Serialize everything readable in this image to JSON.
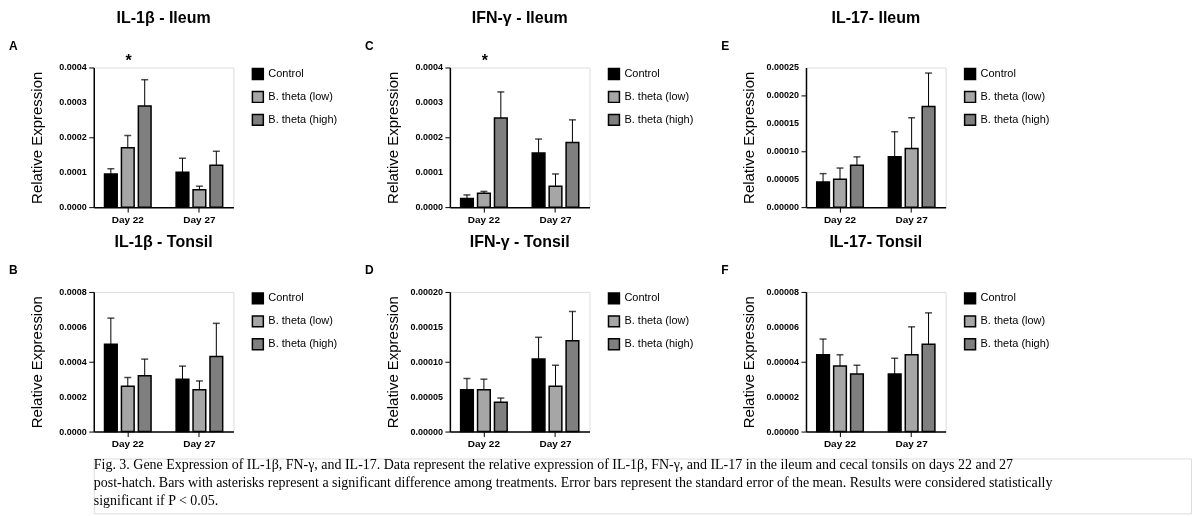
{
  "chart_data": [
    {
      "type": "bar",
      "title": "IL-1β - Ileum",
      "ylabel": "Relative Expression",
      "categories": [
        "Day 22",
        "Day 27"
      ],
      "legend": "right",
      "ylim": [
        0,
        0.0004
      ],
      "yticks": [
        {
          "value": 0,
          "label": "0.0000"
        },
        0.0001,
        0.0002,
        0.0003,
        0.0004
      ],
      "annotations": [
        "A",
        "*"
      ],
      "series": [
        {
          "name": "Control",
          "color": "#000000",
          "values": [
            9.5e-05,
            0.0001
          ],
          "errors": [
            [
              9.5e-05,
              0.00011
            ],
            [
              0.0001,
              0.00014
            ]
          ]
        },
        {
          "name": "B. theta (low)",
          "color": "#a6a6a6",
          "values": [
            0.00017,
            5e-05
          ],
          "errors": [
            [
              0.00017,
              0.000205
            ],
            [
              5e-05,
              6e-05
            ]
          ]
        },
        {
          "name": "B. theta (high)",
          "color": "#7f7f7f",
          "values": [
            0.00029,
            0.00012
          ],
          "errors": [
            [
              0.00029,
              0.000365
            ],
            [
              0.00012,
              0.00016
            ]
          ]
        }
      ]
    },
    {
      "type": "bar",
      "title": "IFN-γ - Ileum",
      "ylabel": "Relative Expression",
      "categories": [
        "Day 22",
        "Day 27"
      ],
      "legend": "right",
      "ylim": [
        0,
        0.0004
      ],
      "yticks": [
        {
          "value": 0,
          "label": "0.0000"
        },
        0.0001,
        0.0002,
        0.0003,
        0.0004
      ],
      "annotations": [
        "C",
        "*"
      ],
      "series": [
        {
          "name": "Control",
          "color": "#000000",
          "values": [
            2.5e-05,
            0.000155
          ],
          "errors": [
            [
              2.5e-05,
              3.5e-05
            ],
            [
              0.000155,
              0.000195
            ]
          ]
        },
        {
          "name": "B. theta (low)",
          "color": "#a6a6a6",
          "values": [
            4e-05,
            6e-05
          ],
          "errors": [
            [
              4e-05,
              4.5e-05
            ],
            [
              6e-05,
              9.5e-05
            ]
          ]
        },
        {
          "name": "B. theta (high)",
          "color": "#7f7f7f",
          "values": [
            0.000255,
            0.000185
          ],
          "errors": [
            [
              0.000255,
              0.00033
            ],
            [
              0.000185,
              0.00025
            ]
          ]
        }
      ]
    },
    {
      "type": "bar",
      "title": "IL-17- Ileum",
      "ylabel": "Relative Expression",
      "categories": [
        "Day 22",
        "Day 27"
      ],
      "legend": "right",
      "ylim": [
        0,
        0.00025
      ],
      "yticks": [
        {
          "value": 0,
          "label": "0.00000"
        },
        {
          "value": 5e-05,
          "label": "0.00005"
        },
        {
          "value": 0.0001,
          "label": "0.00010"
        },
        {
          "value": 0.00015,
          "label": "0.00015"
        },
        {
          "value": 0.0002,
          "label": "0.00020"
        },
        {
          "value": 0.00025,
          "label": "0.00025"
        }
      ],
      "annotations": [
        "E"
      ],
      "series": [
        {
          "name": "Control",
          "color": "#000000",
          "values": [
            4.5e-05,
            9e-05
          ],
          "errors": [
            [
              4.5e-05,
              6e-05
            ],
            [
              9e-05,
              0.000135
            ]
          ]
        },
        {
          "name": "B. theta (low)",
          "color": "#a6a6a6",
          "values": [
            5e-05,
            0.000105
          ],
          "errors": [
            [
              5e-05,
              7e-05
            ],
            [
              0.000105,
              0.00016
            ]
          ]
        },
        {
          "name": "B. theta (high)",
          "color": "#7f7f7f",
          "values": [
            7.5e-05,
            0.00018
          ],
          "errors": [
            [
              7.5e-05,
              9e-05
            ],
            [
              0.00018,
              0.00024
            ]
          ]
        }
      ]
    },
    {
      "type": "bar",
      "title": "IL-1β - Tonsil",
      "ylabel": "Relative Expression",
      "categories": [
        "Day 22",
        "Day 27"
      ],
      "legend": "right",
      "ylim": [
        0,
        0.0008
      ],
      "yticks": [
        {
          "value": 0,
          "label": "0.0000"
        },
        0.0002,
        0.0004,
        0.0006,
        0.0008
      ],
      "annotations": [
        "B"
      ],
      "series": [
        {
          "name": "Control",
          "color": "#000000",
          "values": [
            0.0005,
            0.0003
          ],
          "errors": [
            [
              0.0005,
              0.00065
            ],
            [
              0.0003,
              0.000375
            ]
          ]
        },
        {
          "name": "B. theta (low)",
          "color": "#a6a6a6",
          "values": [
            0.00026,
            0.00024
          ],
          "errors": [
            [
              0.00026,
              0.00031
            ],
            [
              0.00024,
              0.00029
            ]
          ]
        },
        {
          "name": "B. theta (high)",
          "color": "#7f7f7f",
          "values": [
            0.00032,
            0.00043
          ],
          "errors": [
            [
              0.00032,
              0.000415
            ],
            [
              0.00043,
              0.00062
            ]
          ]
        }
      ]
    },
    {
      "type": "bar",
      "title": "IFN-γ - Tonsil",
      "ylabel": "Relative Expression",
      "categories": [
        "Day 22",
        "Day 27"
      ],
      "legend": "right",
      "ylim": [
        0,
        0.0002
      ],
      "yticks": [
        {
          "value": 0,
          "label": "0.00000"
        },
        {
          "value": 5e-05,
          "label": "0.00005"
        },
        {
          "value": 0.0001,
          "label": "0.00010"
        },
        {
          "value": 0.00015,
          "label": "0.00015"
        },
        {
          "value": 0.0002,
          "label": "0.00020"
        }
      ],
      "annotations": [
        "D"
      ],
      "series": [
        {
          "name": "Control",
          "color": "#000000",
          "values": [
            6e-05,
            0.000104
          ],
          "errors": [
            [
              6e-05,
              7.6e-05
            ],
            [
              0.000104,
              0.000135
            ]
          ]
        },
        {
          "name": "B. theta (low)",
          "color": "#a6a6a6",
          "values": [
            6e-05,
            6.5e-05
          ],
          "errors": [
            [
              6e-05,
              7.5e-05
            ],
            [
              6.5e-05,
              9.5e-05
            ]
          ]
        },
        {
          "name": "B. theta (high)",
          "color": "#7f7f7f",
          "values": [
            4.2e-05,
            0.00013
          ],
          "errors": [
            [
              4.2e-05,
              4.8e-05
            ],
            [
              0.00013,
              0.000172
            ]
          ]
        }
      ]
    },
    {
      "type": "bar",
      "title": "IL-17- Tonsil",
      "ylabel": "Relative Expression",
      "categories": [
        "Day 22",
        "Day 27"
      ],
      "legend": "right",
      "ylim": [
        0,
        8e-05
      ],
      "yticks": [
        {
          "value": 0,
          "label": "0.00000"
        },
        {
          "value": 2e-05,
          "label": "0.00002"
        },
        {
          "value": 4e-05,
          "label": "0.00004"
        },
        {
          "value": 6e-05,
          "label": "0.00006"
        },
        {
          "value": 8e-05,
          "label": "0.00008"
        }
      ],
      "annotations": [
        "F"
      ],
      "series": [
        {
          "name": "Control",
          "color": "#000000",
          "values": [
            4.4e-05,
            3.3e-05
          ],
          "errors": [
            [
              4.4e-05,
              5.3e-05
            ],
            [
              3.3e-05,
              4.2e-05
            ]
          ]
        },
        {
          "name": "B. theta (low)",
          "color": "#a6a6a6",
          "values": [
            3.75e-05,
            4.4e-05
          ],
          "errors": [
            [
              3.75e-05,
              4.4e-05
            ],
            [
              4.4e-05,
              6e-05
            ]
          ]
        },
        {
          "name": "B. theta (high)",
          "color": "#7f7f7f",
          "values": [
            3.3e-05,
            5e-05
          ],
          "errors": [
            [
              3.3e-05,
              3.8e-05
            ],
            [
              5e-05,
              6.8e-05
            ]
          ]
        }
      ]
    },
    {
      "type": "other",
      "annotations": [
        "Fig. 3. Gene Expression of IL-1β, FN-γ, and IL-17. Data represent the relative expression of IL-1β, FN-γ, and IL-17 in the ileum and cecal tonsils on days 22 and 27 post-hatch. Bars with asterisks represent a significant difference among treatments. Error bars represent the standard error of the mean. Results were considered statistically significant if P < 0.05."
      ]
    }
  ]
}
